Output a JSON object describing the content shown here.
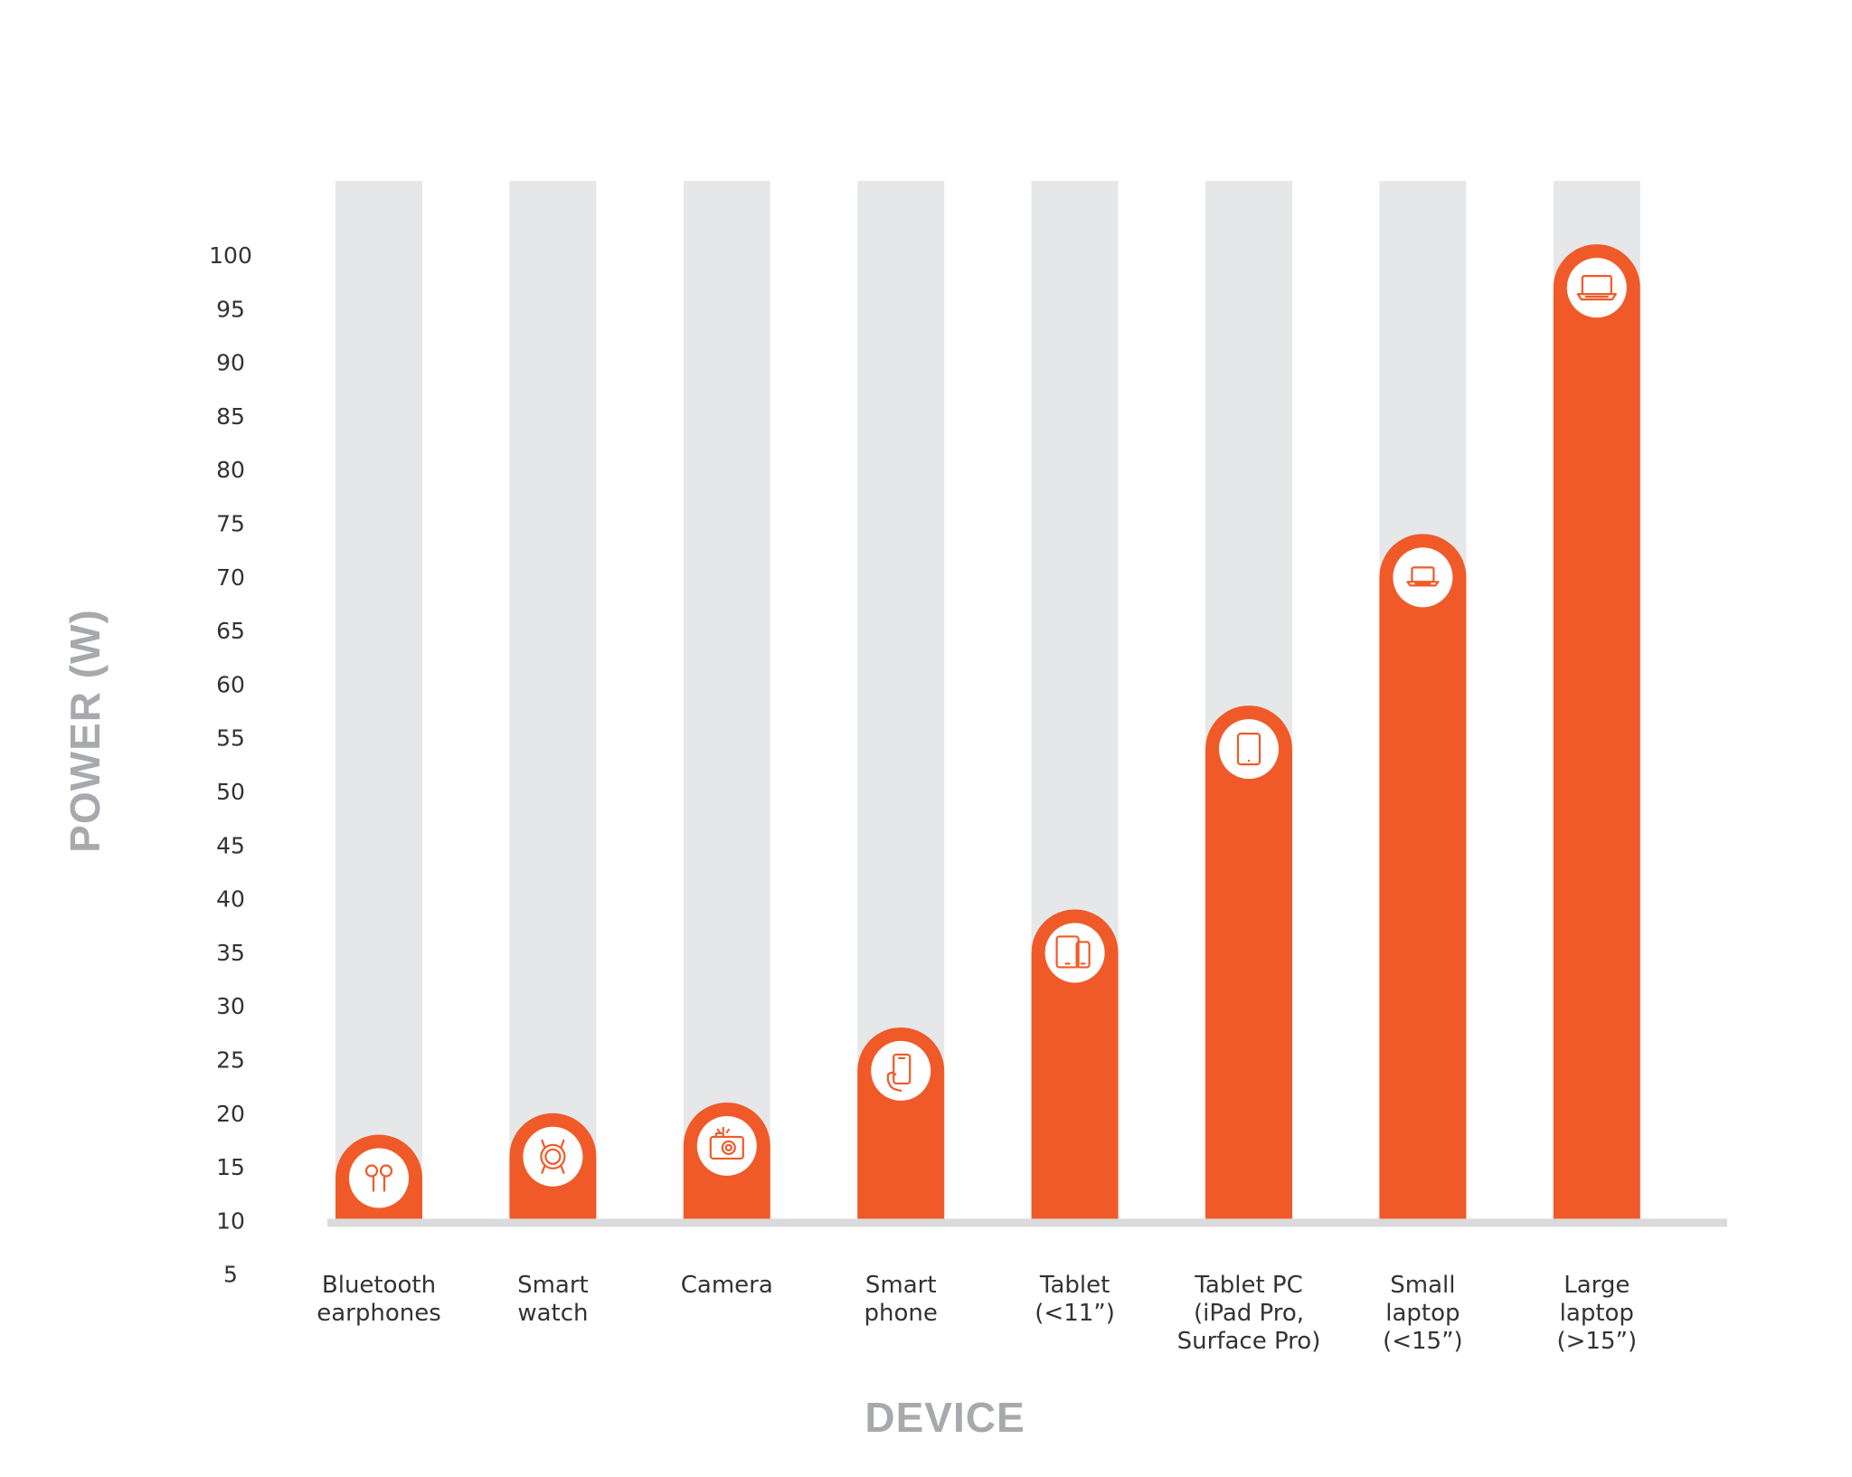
{
  "chart_data": {
    "type": "bar",
    "title": "",
    "xlabel": "DEVICE",
    "ylabel": "POWER (W)",
    "ylim": [
      5,
      100
    ],
    "yticks": [
      5,
      10,
      15,
      20,
      25,
      30,
      35,
      40,
      45,
      50,
      55,
      60,
      65,
      70,
      75,
      80,
      85,
      90,
      95,
      100
    ],
    "y_tick_labels": [
      "5",
      "10",
      "15",
      "20",
      "25",
      "30",
      "35",
      "40",
      "45",
      "50",
      "55",
      "60",
      "65",
      "70",
      "75",
      "80",
      "85",
      "90",
      "95",
      "100"
    ],
    "categories": [
      "Bluetooth earphones",
      "Smart watch",
      "Camera",
      "Smart phone",
      "Tablet (<11”)",
      "Tablet PC (iPad Pro, Surface Pro)",
      "Small laptop (<15”)",
      "Large laptop (>15”)"
    ],
    "category_label_lines": [
      [
        "Bluetooth",
        "earphones"
      ],
      [
        "Smart",
        "watch"
      ],
      [
        "Camera"
      ],
      [
        "Smart",
        "phone"
      ],
      [
        "Tablet",
        "(<11”)"
      ],
      [
        "Tablet PC",
        "(iPad Pro,",
        "Surface Pro)"
      ],
      [
        "Small",
        "laptop",
        "(<15”)"
      ],
      [
        "Large",
        "laptop",
        "(>15”)"
      ]
    ],
    "values": [
      18,
      20,
      21,
      28,
      39,
      58,
      74,
      101
    ],
    "icons": [
      "earbuds-icon",
      "smartwatch-icon",
      "camera-icon",
      "smartphone-icon",
      "tablets-icon",
      "tablet-pc-icon",
      "small-laptop-icon",
      "large-laptop-icon"
    ],
    "grid": false,
    "legend": "none"
  },
  "colors": {
    "bar": "#f05a28",
    "track": "#e6e7e8",
    "baseline": "#d9dadb",
    "axis_title": "#a7a9ac",
    "text": "#333333",
    "icon_bg": "#ffffff"
  }
}
